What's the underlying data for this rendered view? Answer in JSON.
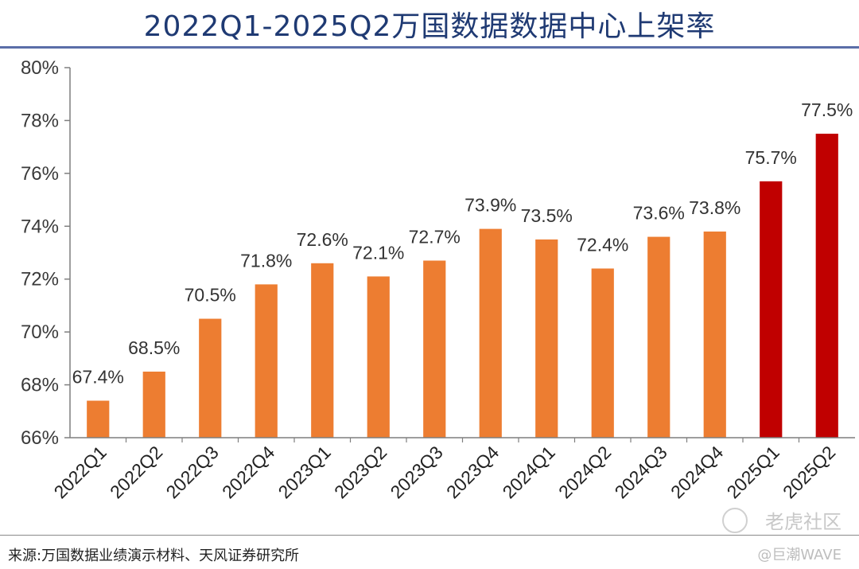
{
  "chart_data": {
    "type": "bar",
    "title": "2022Q1-2025Q2万国数据数据中心上架率",
    "categories": [
      "2022Q1",
      "2022Q2",
      "2022Q3",
      "2022Q4",
      "2023Q1",
      "2023Q2",
      "2023Q3",
      "2023Q4",
      "2024Q1",
      "2024Q2",
      "2024Q3",
      "2024Q4",
      "2025Q1",
      "2025Q2"
    ],
    "values": [
      67.4,
      68.5,
      70.5,
      71.8,
      72.6,
      72.1,
      72.7,
      73.9,
      73.5,
      72.4,
      73.6,
      73.8,
      75.7,
      77.5
    ],
    "value_labels": [
      "67.4%",
      "68.5%",
      "70.5%",
      "71.8%",
      "72.6%",
      "72.1%",
      "72.7%",
      "73.9%",
      "73.5%",
      "72.4%",
      "73.6%",
      "73.8%",
      "75.7%",
      "77.5%"
    ],
    "ylim": [
      66,
      80
    ],
    "yticks": [
      66,
      68,
      70,
      72,
      74,
      76,
      78,
      80
    ],
    "ytick_labels": [
      "66%",
      "68%",
      "70%",
      "72%",
      "74%",
      "76%",
      "78%",
      "80%"
    ],
    "xlabel": "",
    "ylabel": "",
    "grid": false,
    "colors": {
      "default": "#ed7d31",
      "highlight": "#c00000",
      "highlight_categories": [
        "2025Q1",
        "2025Q2"
      ]
    }
  },
  "source": "来源:万国数据业绩演示材料、天风证券研究所",
  "watermark": {
    "primary": "老虎社区",
    "secondary": "@巨潮WAVE"
  }
}
